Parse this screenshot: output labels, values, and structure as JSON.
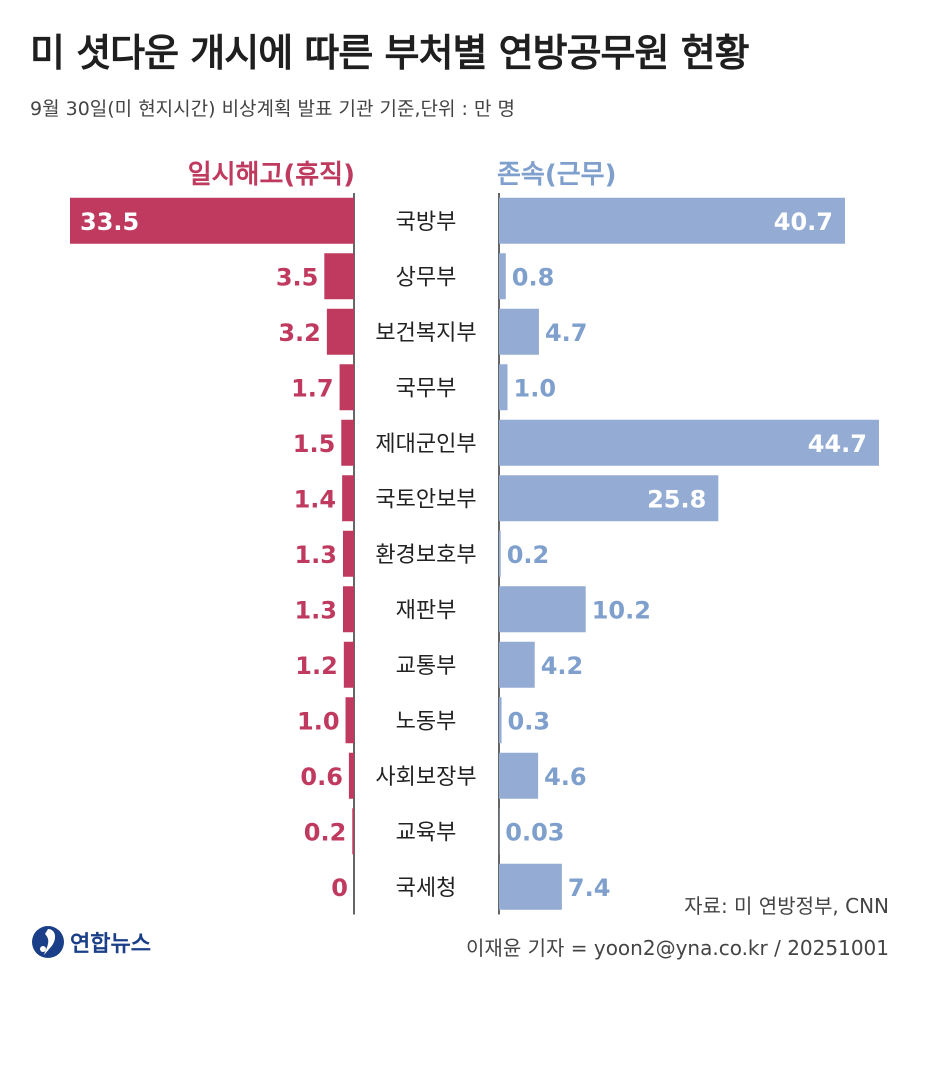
{
  "title": "미 셧다운 개시에 따른 부처별 연방공무원 현황",
  "subtitle": "9월 30일(미 현지시간) 비상계획 발표 기관 기준,단위 : 만 명",
  "legend": {
    "left": "일시해고(휴직)",
    "right": "존속(근무)"
  },
  "source": "자료: 미 연방정부, CNN",
  "credit": "이재윤 기자 = yoon2@yna.co.kr / 20251001",
  "logo": {
    "text": "연합뉴스",
    "icon": "yonhap-logo-icon"
  },
  "colors": {
    "left": "#bf3a5e",
    "right": "#94acd3",
    "right_label": "#7f9fcd",
    "label_light": "#ffffff",
    "axis": "#333333"
  },
  "chart_data": {
    "type": "bar",
    "categories": [
      "국방부",
      "상무부",
      "보건복지부",
      "국무부",
      "제대군인부",
      "국토안보부",
      "환경보호부",
      "재판부",
      "교통부",
      "노동부",
      "사회보장부",
      "교육부",
      "국세청"
    ],
    "series": [
      {
        "name": "일시해고(휴직)",
        "values": [
          33.5,
          3.5,
          3.2,
          1.7,
          1.5,
          1.4,
          1.3,
          1.3,
          1.2,
          1.0,
          0.6,
          0.2,
          0
        ],
        "labels": [
          "33.5",
          "3.5",
          "3.2",
          "1.7",
          "1.5",
          "1.4",
          "1.3",
          "1.3",
          "1.2",
          "1.0",
          "0.6",
          "0.2",
          "0"
        ]
      },
      {
        "name": "존속(근무)",
        "values": [
          40.7,
          0.8,
          4.7,
          1.0,
          44.7,
          25.8,
          0.2,
          10.2,
          4.2,
          0.3,
          4.6,
          0.03,
          7.4
        ],
        "labels": [
          "40.7",
          "0.8",
          "4.7",
          "1.0",
          "44.7",
          "25.8",
          "0.2",
          "10.2",
          "4.2",
          "0.3",
          "4.6",
          "0.03",
          "7.4"
        ]
      }
    ],
    "unit": "만 명",
    "orientation": "horizontal-diverging"
  }
}
